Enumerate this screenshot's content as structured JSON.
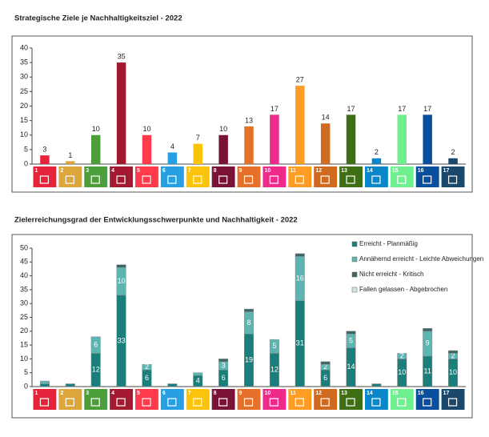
{
  "chart_data": [
    {
      "type": "bar",
      "title": "Strategische Ziele je Nachhaltigkeitsziel - 2022",
      "categories": [
        "1",
        "2",
        "3",
        "4",
        "5",
        "6",
        "7",
        "8",
        "9",
        "10",
        "11",
        "12",
        "13",
        "14",
        "15",
        "16",
        "17"
      ],
      "values": [
        3,
        1,
        10,
        35,
        10,
        4,
        7,
        10,
        13,
        17,
        27,
        14,
        17,
        2,
        17,
        17,
        2
      ],
      "colors": [
        "#e5243b",
        "#dda63a",
        "#4c9f38",
        "#a21930",
        "#ff3a4a",
        "#26a0e2",
        "#fcc30b",
        "#7a1238",
        "#e5702a",
        "#ee2a8a",
        "#fd9d24",
        "#cf6a1e",
        "#3f6e14",
        "#0a87c9",
        "#6ef08f",
        "#0a4f9d",
        "#19486a"
      ],
      "ylim": [
        0,
        40
      ],
      "yticks": [
        0,
        5,
        10,
        15,
        20,
        25,
        30,
        35,
        40
      ]
    },
    {
      "type": "stacked_bar",
      "title": "Zielerreichungsgrad der Entwicklungsschwerpunkte und Nachhaltigkeit - 2022",
      "categories": [
        "1",
        "2",
        "3",
        "4",
        "5",
        "6",
        "7",
        "8",
        "9",
        "10",
        "11",
        "12",
        "13",
        "14",
        "15",
        "16",
        "17"
      ],
      "series": [
        {
          "name": "Erreicht - Planmäßig",
          "color": "#1a7f7a",
          "values": [
            1,
            1,
            12,
            33,
            6,
            1,
            4,
            6,
            19,
            12,
            31,
            6,
            14,
            1,
            10,
            11,
            10
          ]
        },
        {
          "name": "Annähernd erreicht - Leichte Abweichungen",
          "color": "#5db5b2",
          "values": [
            1,
            0,
            6,
            10,
            2,
            0,
            1,
            3,
            8,
            5,
            16,
            2,
            5,
            0,
            2,
            9,
            2
          ]
        },
        {
          "name": "Nicht erreicht - Kritisch",
          "color": "#3d6664",
          "values": [
            0,
            0,
            0,
            1,
            0,
            0,
            0,
            1,
            1,
            0,
            1,
            1,
            1,
            0,
            0,
            1,
            1
          ]
        },
        {
          "name": "Fallen gelassen - Abgebrochen",
          "color": "#cfe4e3",
          "values": [
            0,
            0,
            0,
            0,
            0,
            0,
            0,
            0,
            0,
            0,
            0,
            0,
            0,
            0,
            0,
            0,
            0
          ]
        }
      ],
      "ylim": [
        0,
        50
      ],
      "yticks": [
        0,
        5,
        10,
        15,
        20,
        25,
        30,
        35,
        40,
        45,
        50
      ],
      "legend": "upper right"
    }
  ]
}
